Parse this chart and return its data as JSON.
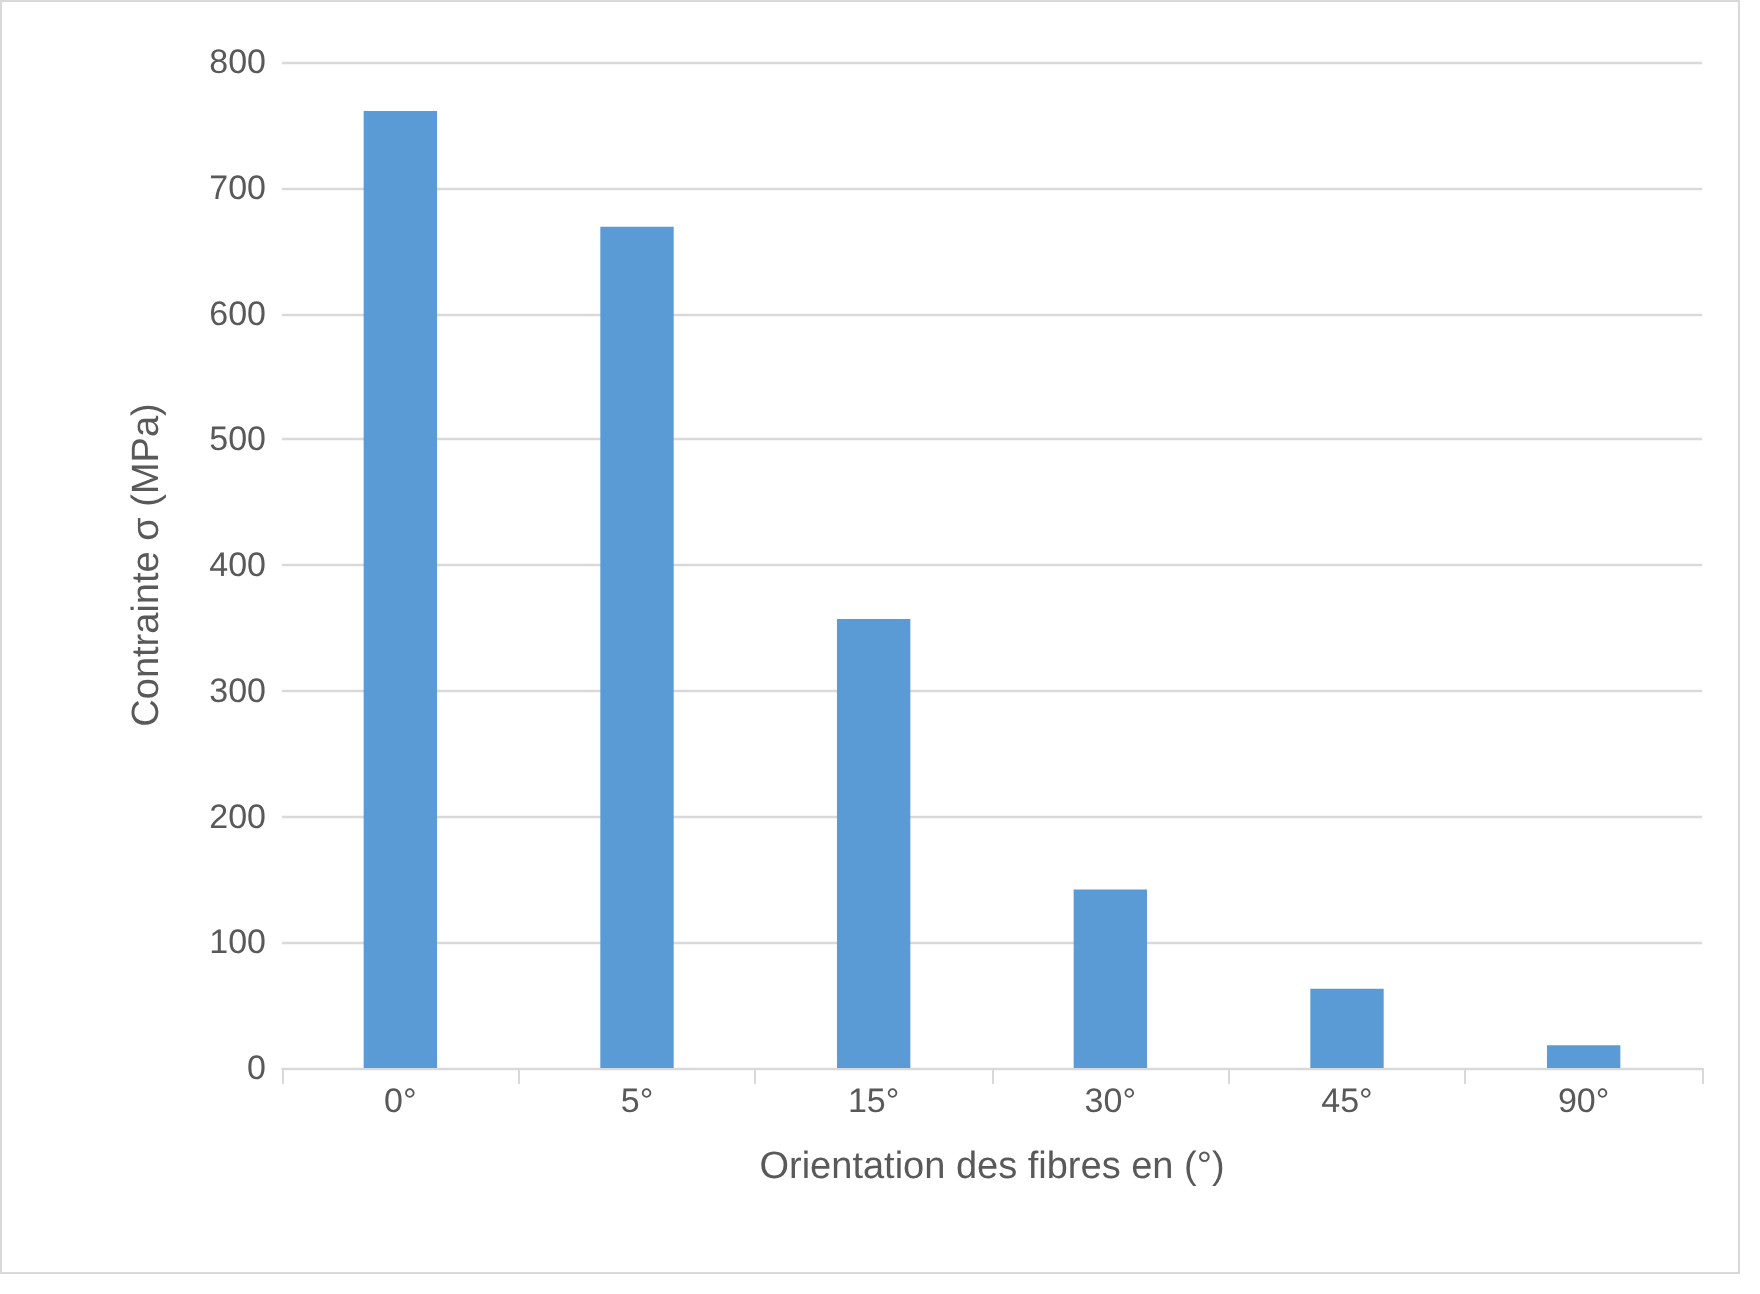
{
  "chart_data": {
    "type": "bar",
    "xlabel": "Orientation des fibres en (°)",
    "ylabel": "Contrainte σ (MPa)",
    "categories": [
      "0°",
      "5°",
      "15°",
      "30°",
      "45°",
      "90°"
    ],
    "values": [
      761,
      669,
      357,
      142,
      63,
      18
    ],
    "color": "#5b9bd5",
    "ylim": [
      0,
      800
    ],
    "yticks": [
      0,
      100,
      200,
      300,
      400,
      500,
      600,
      700,
      800
    ],
    "grid": "y"
  }
}
